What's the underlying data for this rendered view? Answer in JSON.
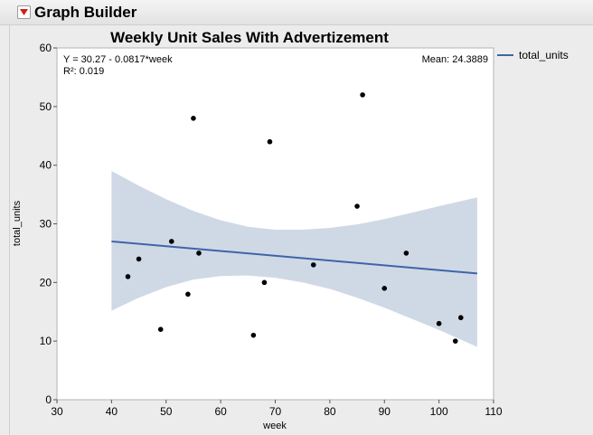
{
  "window": {
    "title": "Graph Builder"
  },
  "colors": {
    "line": "#3f64a8",
    "band": "#cfd9e6",
    "point": "#000000",
    "plot_bg": "#ffffff"
  },
  "icons": {
    "disclosure": "red-triangle-down-icon"
  },
  "chart_data": {
    "type": "scatter",
    "title": "Weekly Unit Sales With Advertizement",
    "xlabel": "week",
    "ylabel": "total_units",
    "xlim": [
      30,
      110
    ],
    "ylim": [
      0,
      60
    ],
    "xticks": [
      30,
      40,
      50,
      60,
      70,
      80,
      90,
      100,
      110
    ],
    "yticks": [
      0,
      10,
      20,
      30,
      40,
      50,
      60
    ],
    "grid": false,
    "legend": {
      "position": "right",
      "entries": [
        "total_units"
      ]
    },
    "points": [
      {
        "x": 43,
        "y": 21
      },
      {
        "x": 45,
        "y": 24
      },
      {
        "x": 49,
        "y": 12
      },
      {
        "x": 51,
        "y": 27
      },
      {
        "x": 54,
        "y": 18
      },
      {
        "x": 55,
        "y": 48
      },
      {
        "x": 56,
        "y": 25
      },
      {
        "x": 66,
        "y": 11
      },
      {
        "x": 68,
        "y": 20
      },
      {
        "x": 69,
        "y": 44
      },
      {
        "x": 77,
        "y": 23
      },
      {
        "x": 85,
        "y": 33
      },
      {
        "x": 86,
        "y": 52
      },
      {
        "x": 90,
        "y": 19
      },
      {
        "x": 94,
        "y": 25
      },
      {
        "x": 100,
        "y": 13
      },
      {
        "x": 103,
        "y": 10
      },
      {
        "x": 104,
        "y": 14
      }
    ],
    "fit": {
      "equation": "Y = 30.27 - 0.0817*week",
      "r2": "R²: 0.019",
      "mean": "Mean: 24.3889",
      "x_range": [
        40,
        107
      ],
      "intercept": 30.27,
      "slope": -0.0817
    },
    "confidence_band": {
      "x": [
        40,
        45,
        50,
        55,
        60,
        65,
        70,
        75,
        80,
        85,
        90,
        95,
        100,
        107
      ],
      "upper": [
        39,
        36.5,
        34.2,
        32.2,
        30.6,
        29.5,
        29.0,
        29.0,
        29.3,
        29.9,
        30.8,
        31.9,
        33.0,
        34.5
      ],
      "lower": [
        15.2,
        17.4,
        19.2,
        20.5,
        21.1,
        21.2,
        20.8,
        20.0,
        18.9,
        17.4,
        15.7,
        13.8,
        11.9,
        9.0
      ]
    }
  }
}
